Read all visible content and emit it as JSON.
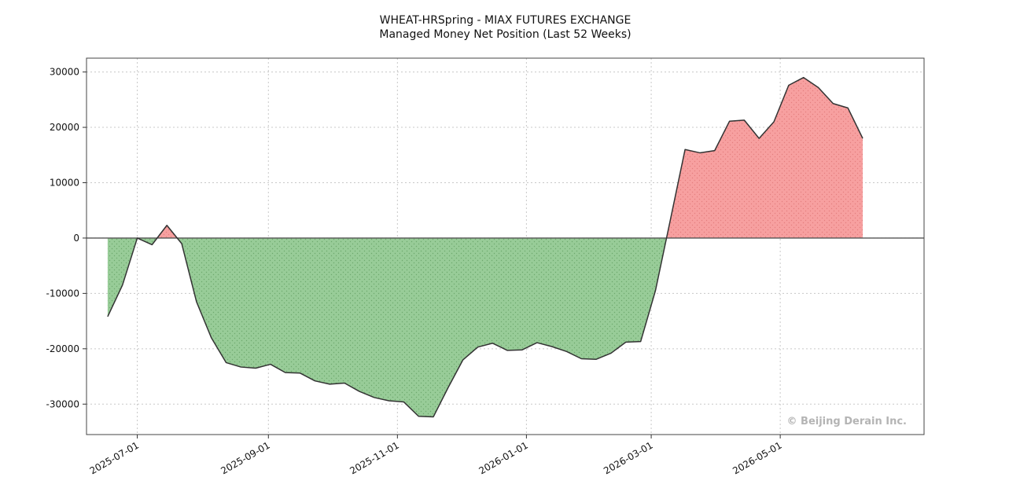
{
  "chart_data": {
    "type": "area",
    "title": "WHEAT-HRSpring - MIAX FUTURES EXCHANGE",
    "subtitle": "Managed Money Net Position (Last 52 Weeks)",
    "xlabel": "",
    "ylabel": "",
    "watermark": "© Beijing Derain Inc.",
    "x_ticks": [
      "2025-07-01",
      "2025-09-01",
      "2025-11-01",
      "2026-01-01",
      "2026-03-01",
      "2026-05-01"
    ],
    "y_ticks": [
      30000,
      20000,
      10000,
      0,
      -10000,
      -20000,
      -30000
    ],
    "xlim": [
      "2025-06-07",
      "2026-07-08"
    ],
    "ylim": [
      -35500,
      32500
    ],
    "grid": true,
    "colors": {
      "positive_fill": "#f7a0a0",
      "negative_fill": "#98cc98",
      "line": "#333333",
      "watermark": "#b4b4b4"
    },
    "x": [
      "2025-06-17",
      "2025-06-24",
      "2025-07-01",
      "2025-07-08",
      "2025-07-15",
      "2025-07-22",
      "2025-07-29",
      "2025-08-05",
      "2025-08-12",
      "2025-08-19",
      "2025-08-26",
      "2025-09-02",
      "2025-09-09",
      "2025-09-16",
      "2025-09-23",
      "2025-09-30",
      "2025-10-07",
      "2025-10-14",
      "2025-10-21",
      "2025-10-28",
      "2025-11-04",
      "2025-11-11",
      "2025-11-18",
      "2025-11-25",
      "2025-12-02",
      "2025-12-09",
      "2025-12-16",
      "2025-12-23",
      "2025-12-30",
      "2026-01-06",
      "2026-01-13",
      "2026-01-20",
      "2026-01-27",
      "2026-02-03",
      "2026-02-10",
      "2026-02-17",
      "2026-02-24",
      "2026-03-03",
      "2026-03-10",
      "2026-03-17",
      "2026-03-24",
      "2026-03-31",
      "2026-04-07",
      "2026-04-14",
      "2026-04-21",
      "2026-04-28",
      "2026-05-05",
      "2026-05-12",
      "2026-05-19",
      "2026-05-26",
      "2026-06-02",
      "2026-06-09"
    ],
    "values": [
      -14200,
      -8500,
      0,
      -1200,
      2300,
      -1000,
      -11500,
      -18000,
      -22500,
      -23300,
      -23500,
      -22800,
      -24300,
      -24400,
      -25800,
      -26400,
      -26200,
      -27700,
      -28800,
      -29400,
      -29600,
      -32200,
      -32300,
      -27000,
      -22000,
      -19700,
      -19000,
      -20300,
      -20200,
      -18900,
      -19600,
      -20500,
      -21800,
      -21900,
      -20800,
      -18800,
      -18700,
      -9500,
      3200,
      16000,
      15400,
      15800,
      21100,
      21300,
      18000,
      21000,
      27600,
      29000,
      27200,
      24300,
      23500,
      18000
    ]
  }
}
